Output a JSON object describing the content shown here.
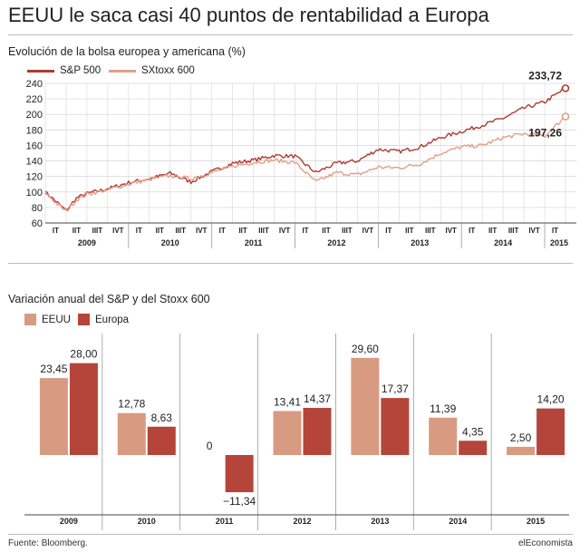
{
  "title": "EEUU le saca casi 40 puntos de rentabilidad a Europa",
  "colors": {
    "sp500": "#b03a2e",
    "sxtoxx": "#e0a08b",
    "eeuu_bar": "#d99a82",
    "europa_bar": "#b5453a"
  },
  "chart_data": [
    {
      "type": "line",
      "title": "Evolución de la bolsa europea y americana (%)",
      "ylim": [
        60,
        240
      ],
      "yticks": [
        60,
        80,
        100,
        120,
        140,
        160,
        180,
        200,
        220,
        240
      ],
      "years": [
        "2009",
        "2010",
        "2011",
        "2012",
        "2013",
        "2014",
        "2015"
      ],
      "quarter_labels": [
        [
          "IT",
          "IIT",
          "IIIT",
          "IVT"
        ],
        [
          "IT",
          "IIT",
          "IIIT",
          "IVT"
        ],
        [
          "IT",
          "IIT",
          "IIIT",
          "IVT"
        ],
        [
          "IT",
          "IIT",
          "IIIT",
          "IVT"
        ],
        [
          "IT",
          "IIT",
          "IIIT",
          "IVT"
        ],
        [
          "IT",
          "IIT",
          "IIIT",
          "IVT"
        ],
        [
          "IT"
        ]
      ],
      "x": [
        0,
        0.5,
        1,
        1.5,
        2,
        3,
        4,
        5,
        6,
        7,
        8,
        9,
        10,
        11,
        12,
        13,
        14,
        15,
        16,
        17,
        18,
        19,
        20,
        21,
        22,
        23,
        24,
        25
      ],
      "series": [
        {
          "name": "S&P 500",
          "values": [
            100,
            88,
            76,
            92,
            98,
            104,
            112,
            117,
            124,
            113,
            126,
            137,
            141,
            147,
            146,
            125,
            137,
            140,
            155,
            152,
            158,
            170,
            178,
            186,
            195,
            208,
            216,
            233.72
          ],
          "end_label": "233,72"
        },
        {
          "name": "SXtoxx 600",
          "values": [
            100,
            86,
            75,
            90,
            97,
            103,
            110,
            116,
            121,
            117,
            125,
            133,
            138,
            141,
            138,
            113,
            125,
            122,
            132,
            131,
            136,
            150,
            158,
            160,
            170,
            175,
            172,
            197.26
          ],
          "end_label": "197,26"
        }
      ]
    },
    {
      "type": "bar",
      "title": "Variación anual del S&P y del Stoxx 600",
      "categories": [
        "2009",
        "2010",
        "2011",
        "2012",
        "2013",
        "2014",
        "2015"
      ],
      "series": [
        {
          "name": "EEUU",
          "values": [
            23.45,
            12.78,
            0,
            13.41,
            29.6,
            11.39,
            2.5
          ],
          "labels": [
            "23,45",
            "12,78",
            "0",
            "13,41",
            "29,60",
            "11,39",
            "2,50"
          ]
        },
        {
          "name": "Europa",
          "values": [
            28.0,
            8.63,
            -11.34,
            14.37,
            17.37,
            4.35,
            14.2
          ],
          "labels": [
            "28,00",
            "8,63",
            "−11,34",
            "14,37",
            "17,37",
            "4,35",
            "14,20"
          ]
        }
      ]
    }
  ],
  "footer": {
    "source": "Fuente: Bloomberg.",
    "brand": "elEconomista"
  }
}
